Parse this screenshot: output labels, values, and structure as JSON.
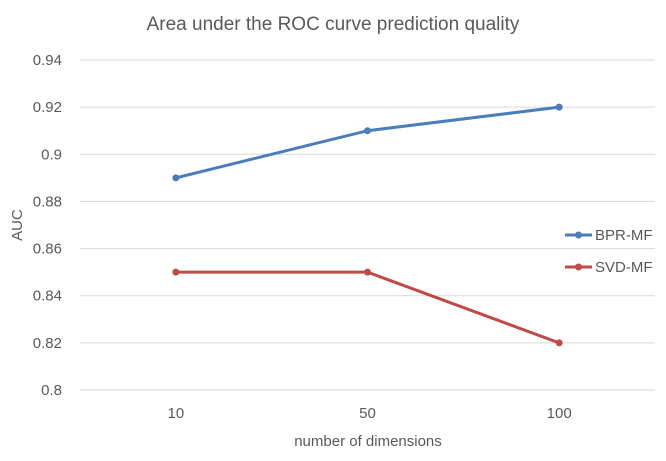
{
  "chart_data": {
    "type": "line",
    "title": "Area under the ROC curve prediction quality",
    "xlabel": "number of dimensions",
    "ylabel": "AUC",
    "categories": [
      "10",
      "50",
      "100"
    ],
    "ylim": [
      0.8,
      0.94
    ],
    "yticks": [
      "0.8",
      "0.82",
      "0.84",
      "0.86",
      "0.88",
      "0.9",
      "0.92",
      "0.94"
    ],
    "grid": true,
    "legend_position": "right",
    "series": [
      {
        "name": "BPR-MF",
        "values": [
          0.89,
          0.91,
          0.92
        ],
        "color": "#4a7ebb"
      },
      {
        "name": "SVD-MF",
        "values": [
          0.85,
          0.85,
          0.82
        ],
        "color": "#be4b48"
      }
    ]
  }
}
